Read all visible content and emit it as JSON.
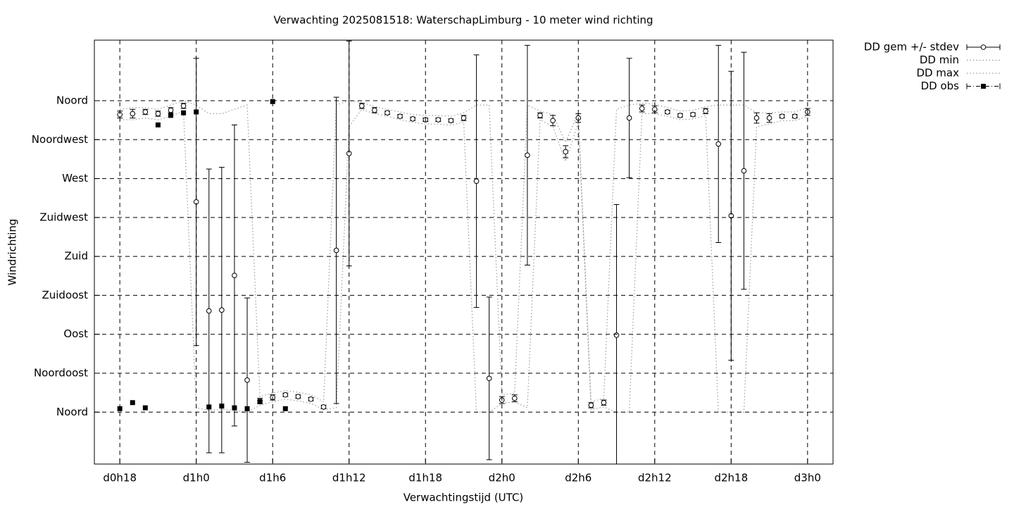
{
  "chart_data": {
    "type": "errorbar",
    "title": "Verwachting 2025081518: WaterschapLimburg - 10 meter wind richting",
    "x_label": "Verwachtingstijd (UTC)",
    "y_label": "Windrichting",
    "x": [
      18,
      19,
      20,
      21,
      22,
      23,
      24,
      25,
      26,
      27,
      28,
      29,
      30,
      31,
      32,
      33,
      34,
      35,
      36,
      37,
      38,
      39,
      40,
      41,
      42,
      43,
      44,
      45,
      46,
      47,
      48,
      49,
      50,
      51,
      52,
      53,
      54,
      55,
      56,
      57,
      58,
      59,
      60,
      61,
      62,
      63,
      64,
      65,
      66,
      67,
      68,
      69,
      70,
      71,
      72
    ],
    "xlim": [
      16,
      74
    ],
    "ylim": [
      -60,
      430
    ],
    "xticks": [
      {
        "value": 18,
        "label": "d0h18"
      },
      {
        "value": 24,
        "label": "d1h0"
      },
      {
        "value": 30,
        "label": "d1h6"
      },
      {
        "value": 36,
        "label": "d1h12"
      },
      {
        "value": 42,
        "label": "d1h18"
      },
      {
        "value": 48,
        "label": "d2h0"
      },
      {
        "value": 54,
        "label": "d2h6"
      },
      {
        "value": 60,
        "label": "d2h12"
      },
      {
        "value": 66,
        "label": "d2h18"
      },
      {
        "value": 72,
        "label": "d3h0"
      }
    ],
    "yticks": [
      {
        "value": 0,
        "label": "Noord"
      },
      {
        "value": 45,
        "label": "Noordoost"
      },
      {
        "value": 90,
        "label": "Oost"
      },
      {
        "value": 135,
        "label": "Zuidoost"
      },
      {
        "value": 180,
        "label": "Zuid"
      },
      {
        "value": 225,
        "label": "Zuidwest"
      },
      {
        "value": 270,
        "label": "West"
      },
      {
        "value": 315,
        "label": "Noordwest"
      },
      {
        "value": 360,
        "label": "Noord"
      }
    ],
    "grid": true,
    "legend": "outside-top-right",
    "series": [
      {
        "name": "DD gem +/- stdev",
        "style": "errorbar",
        "color": "#000000",
        "values": [
          344,
          345,
          347,
          345,
          349,
          354,
          243,
          117,
          118,
          158,
          37,
          13,
          17,
          20,
          18,
          15,
          6,
          187,
          299,
          354,
          349,
          346,
          342,
          339,
          338,
          338,
          337,
          340,
          267,
          39,
          14,
          16,
          297,
          343,
          337,
          301,
          340,
          8,
          11,
          89,
          340,
          351,
          350,
          347,
          343,
          344,
          348,
          310,
          227,
          279,
          340,
          340,
          342,
          342,
          347
        ],
        "errors": [
          4,
          5,
          3,
          3,
          3,
          3,
          166,
          164,
          165,
          174,
          95,
          3,
          3,
          2,
          2,
          2,
          2,
          177,
          130,
          3,
          3,
          2,
          2,
          2,
          2,
          2,
          2,
          3,
          146,
          94,
          4,
          4,
          127,
          3,
          6,
          7,
          5,
          3,
          3,
          151,
          69,
          4,
          4,
          2,
          2,
          2,
          3,
          114,
          167,
          137,
          6,
          5,
          2,
          2,
          4
        ]
      },
      {
        "name": "DD min",
        "style": "dotted",
        "color": "#9a9a9a",
        "values": [
          338,
          338,
          340,
          338,
          342,
          348,
          5,
          2,
          3,
          2,
          0,
          8,
          12,
          15,
          13,
          10,
          3,
          5,
          330,
          350,
          345,
          342,
          338,
          335,
          333,
          333,
          332,
          335,
          0,
          0,
          10,
          12,
          5,
          338,
          330,
          290,
          335,
          3,
          6,
          0,
          0,
          345,
          345,
          342,
          338,
          339,
          343,
          0,
          0,
          0,
          330,
          333,
          337,
          337,
          342
        ]
      },
      {
        "name": "DD max",
        "style": "dotted",
        "color": "#9a9a9a",
        "values": [
          350,
          352,
          352,
          350,
          355,
          360,
          355,
          345,
          345,
          350,
          355,
          18,
          22,
          25,
          23,
          20,
          12,
          355,
          360,
          358,
          353,
          350,
          347,
          344,
          343,
          343,
          342,
          346,
          355,
          355,
          20,
          22,
          355,
          348,
          344,
          312,
          346,
          12,
          16,
          350,
          355,
          357,
          356,
          352,
          348,
          349,
          353,
          355,
          355,
          355,
          346,
          346,
          347,
          347,
          352
        ]
      },
      {
        "name": "DD obs",
        "style": "points",
        "color": "#000000",
        "values": [
          4,
          11,
          5,
          332,
          343,
          346,
          347,
          6,
          7,
          5,
          4,
          12,
          359,
          4,
          null,
          null,
          null,
          null,
          null,
          null,
          null,
          null,
          null,
          null,
          null,
          null,
          null,
          null,
          null,
          null,
          null,
          null,
          null,
          null,
          null,
          null,
          null,
          null,
          null,
          null,
          null,
          null,
          null,
          null,
          null,
          null,
          null,
          null,
          null,
          null,
          null,
          null,
          null,
          null,
          null
        ]
      }
    ]
  }
}
